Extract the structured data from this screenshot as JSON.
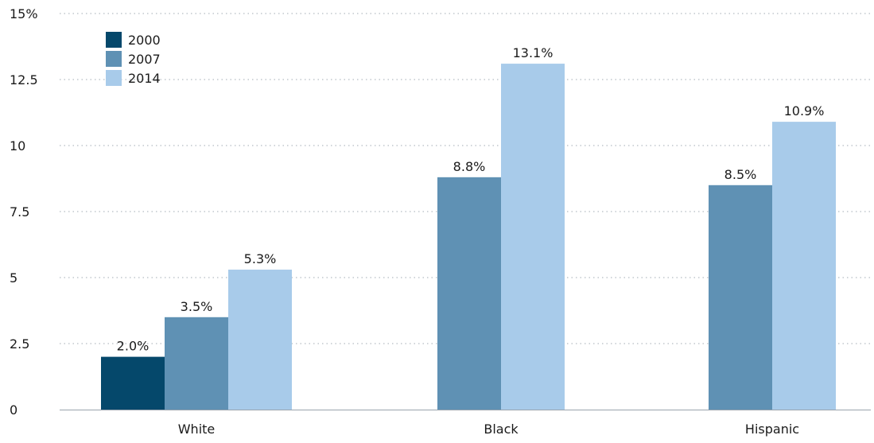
{
  "chart_data": {
    "type": "bar",
    "title": "",
    "xlabel": "",
    "ylabel": "",
    "categories": [
      "White",
      "Black",
      "Hispanic"
    ],
    "series": [
      {
        "name": "2000",
        "color": "#05486b",
        "values": [
          2.0,
          null,
          null
        ],
        "labels": [
          "2.0%",
          "",
          ""
        ]
      },
      {
        "name": "2007",
        "color": "#5f91b4",
        "values": [
          3.5,
          8.8,
          8.5
        ],
        "labels": [
          "3.5%",
          "8.8%",
          "8.5%"
        ]
      },
      {
        "name": "2014",
        "color": "#a8cbea",
        "values": [
          5.3,
          13.1,
          10.9
        ],
        "labels": [
          "5.3%",
          "13.1%",
          "10.9%"
        ]
      }
    ],
    "ylim": [
      0,
      15
    ],
    "yticks": [
      0,
      2.5,
      5,
      7.5,
      10,
      12.5,
      15
    ],
    "ytick_labels": [
      "0",
      "2.5",
      "5",
      "7.5",
      "10",
      "12.5",
      "15%"
    ],
    "grid": true,
    "legend_position": "top-left"
  }
}
